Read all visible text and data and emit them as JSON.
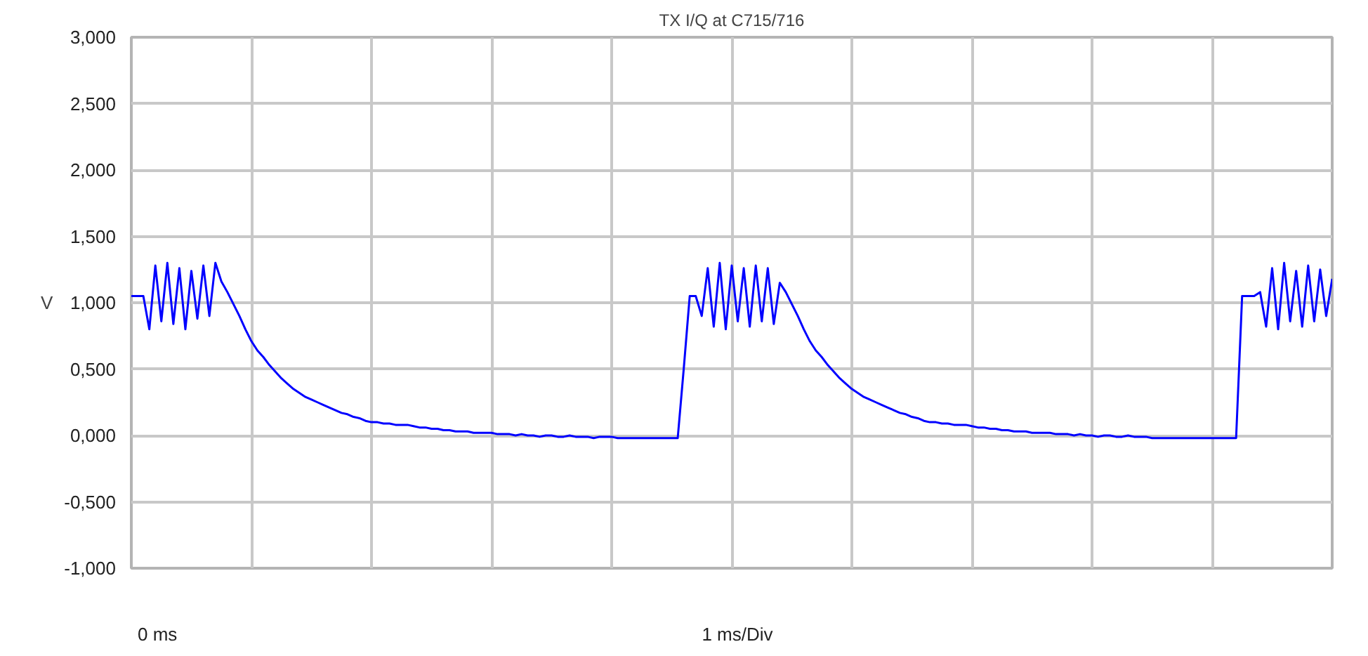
{
  "chart_data": {
    "type": "line",
    "title": "TX I/Q at C715/716",
    "ylabel": "V",
    "categories": [
      null,
      null,
      null,
      null,
      null,
      null,
      null,
      null,
      null,
      null,
      null,
      null,
      null,
      null,
      null,
      null,
      null,
      null,
      null,
      null,
      null,
      null,
      null,
      null,
      null,
      null,
      null,
      null,
      null,
      null,
      null,
      null,
      null,
      null,
      null,
      null,
      null,
      null,
      null,
      null,
      null,
      null,
      null,
      null,
      null,
      null,
      null,
      null,
      null,
      null,
      null,
      null,
      null,
      null,
      null,
      null,
      null,
      null,
      null,
      null,
      null,
      null,
      null,
      null,
      null,
      null,
      null,
      null,
      null,
      null,
      null,
      null,
      null,
      null,
      null,
      null,
      null,
      null,
      null,
      null,
      null,
      null,
      null,
      null,
      null,
      null,
      null,
      null,
      null,
      null,
      null,
      null,
      null,
      null,
      null,
      null,
      null,
      null,
      null,
      null,
      null,
      null,
      null,
      null,
      null,
      null,
      null,
      null,
      null,
      null,
      null,
      null,
      null,
      null,
      null,
      null,
      null,
      null,
      null,
      null,
      null,
      null,
      null,
      null,
      null,
      null,
      null,
      null,
      null,
      null,
      null,
      null,
      null,
      null,
      null,
      null,
      null,
      null,
      null,
      null,
      null,
      null,
      null,
      null,
      null,
      null,
      null,
      null,
      null,
      null,
      null,
      null,
      null,
      null,
      null,
      null,
      null,
      null,
      null,
      null,
      null,
      null,
      null,
      null,
      null,
      null,
      null,
      null,
      null,
      null,
      null,
      null,
      null,
      null,
      null,
      null,
      null,
      null,
      null,
      null,
      null,
      null,
      null,
      null,
      null,
      null,
      null,
      null,
      null,
      null,
      null,
      null,
      null,
      null,
      null,
      null,
      null,
      null,
      null,
      null,
      null
    ],
    "ylim": [
      -1,
      3
    ],
    "yticks": [
      {
        "value": 3,
        "label": "3,000"
      },
      {
        "value": 2.5,
        "label": "2,500"
      },
      {
        "value": 2,
        "label": "2,000"
      },
      {
        "value": 1.5,
        "label": "1,500"
      },
      {
        "value": 1,
        "label": "1,000"
      },
      {
        "value": 0.5,
        "label": "0,500"
      },
      {
        "value": 0,
        "label": "0,000"
      },
      {
        "value": -0.5,
        "label": "-0,500"
      },
      {
        "value": -1,
        "label": "-1,000"
      }
    ],
    "annotations": [
      "0 ms",
      "1 ms/Div"
    ],
    "grid": true,
    "line_style": "solid",
    "series": [
      {
        "color": "#0000ff",
        "values": [
          1.05,
          1.05,
          1.05,
          0.8,
          1.28,
          0.86,
          1.3,
          0.84,
          1.26,
          0.8,
          1.24,
          0.88,
          1.28,
          0.9,
          1.3,
          1.16,
          1.08,
          0.99,
          0.9,
          0.8,
          0.71,
          0.64,
          0.59,
          0.53,
          0.48,
          0.43,
          0.39,
          0.35,
          0.32,
          0.29,
          0.27,
          0.25,
          0.23,
          0.21,
          0.19,
          0.17,
          0.16,
          0.14,
          0.13,
          0.11,
          0.1,
          0.1,
          0.09,
          0.09,
          0.08,
          0.08,
          0.08,
          0.07,
          0.06,
          0.06,
          0.05,
          0.05,
          0.04,
          0.04,
          0.03,
          0.03,
          0.03,
          0.02,
          0.02,
          0.02,
          0.02,
          0.01,
          0.01,
          0.01,
          0.0,
          0.01,
          0.0,
          0.0,
          -0.01,
          0.0,
          0.0,
          -0.01,
          -0.01,
          0.0,
          -0.01,
          -0.01,
          -0.01,
          -0.02,
          -0.01,
          -0.01,
          -0.01,
          -0.02,
          -0.02,
          -0.02,
          -0.02,
          -0.02,
          -0.02,
          -0.02,
          -0.02,
          -0.02,
          -0.02,
          -0.02,
          0.5,
          1.05,
          1.05,
          0.9,
          1.26,
          0.82,
          1.3,
          0.8,
          1.28,
          0.86,
          1.26,
          0.82,
          1.28,
          0.86,
          1.26,
          0.84,
          1.15,
          1.08,
          0.99,
          0.9,
          0.8,
          0.71,
          0.64,
          0.59,
          0.53,
          0.48,
          0.43,
          0.39,
          0.35,
          0.32,
          0.29,
          0.27,
          0.25,
          0.23,
          0.21,
          0.19,
          0.17,
          0.16,
          0.14,
          0.13,
          0.11,
          0.1,
          0.1,
          0.09,
          0.09,
          0.08,
          0.08,
          0.08,
          0.07,
          0.06,
          0.06,
          0.05,
          0.05,
          0.04,
          0.04,
          0.03,
          0.03,
          0.03,
          0.02,
          0.02,
          0.02,
          0.02,
          0.01,
          0.01,
          0.01,
          0.0,
          0.01,
          0.0,
          0.0,
          -0.01,
          0.0,
          0.0,
          -0.01,
          -0.01,
          0.0,
          -0.01,
          -0.01,
          -0.01,
          -0.02,
          -0.02,
          -0.02,
          -0.02,
          -0.02,
          -0.02,
          -0.02,
          -0.02,
          -0.02,
          -0.02,
          -0.02,
          -0.02,
          -0.02,
          -0.02,
          -0.02,
          1.05,
          1.05,
          1.05,
          1.08,
          0.82,
          1.26,
          0.8,
          1.3,
          0.86,
          1.24,
          0.82,
          1.28,
          0.86,
          1.25,
          0.9,
          1.18
        ]
      }
    ]
  }
}
